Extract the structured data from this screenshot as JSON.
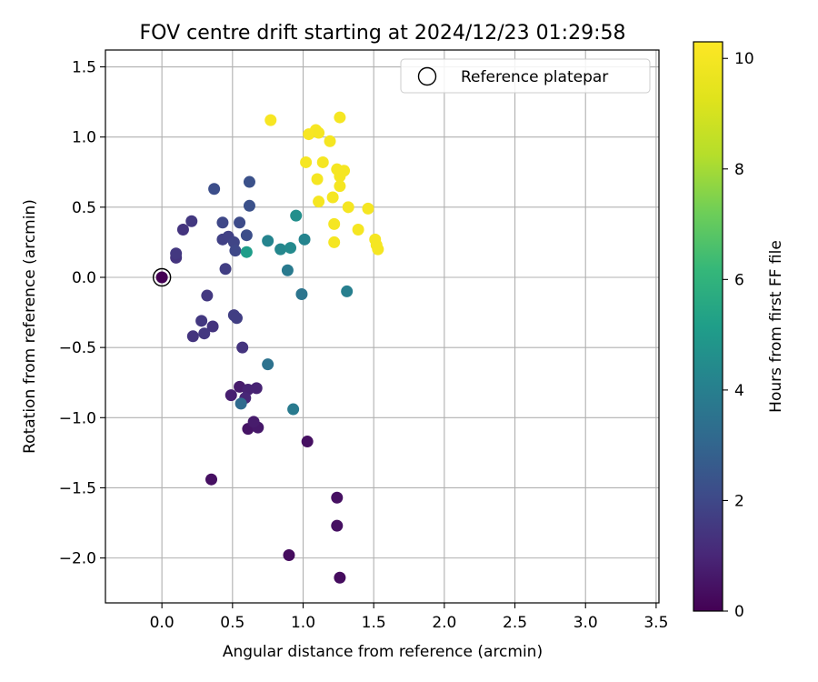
{
  "chart_data": {
    "type": "scatter",
    "title": "FOV centre drift starting at 2024/12/23 01:29:58",
    "xlabel": "Angular distance from reference (arcmin)",
    "ylabel": "Rotation from reference (arcmin)",
    "xlim": [
      -0.4,
      3.52
    ],
    "ylim": [
      -2.32,
      1.62
    ],
    "xticks": [
      0.0,
      0.5,
      1.0,
      1.5,
      2.0,
      2.5,
      3.0,
      3.5
    ],
    "yticks": [
      -2.0,
      -1.5,
      -1.0,
      -0.5,
      0.0,
      0.5,
      1.0,
      1.5
    ],
    "xtick_labels": [
      "0.0",
      "0.5",
      "1.0",
      "1.5",
      "2.0",
      "2.5",
      "3.0",
      "3.5"
    ],
    "ytick_labels": [
      "−2.0",
      "−1.5",
      "−1.0",
      "−0.5",
      "0.0",
      "0.5",
      "1.0",
      "1.5"
    ],
    "grid": true,
    "legend": {
      "position": "top-right",
      "entries": [
        "Reference platepar"
      ]
    },
    "reference_point": {
      "x": 0.0,
      "y": 0.0,
      "label": "Reference platepar"
    },
    "colorbar": {
      "label": "Hours from first FF file",
      "min": 0,
      "max": 10.3,
      "ticks": [
        0,
        2,
        4,
        6,
        8,
        10
      ],
      "tick_labels": [
        "0",
        "2",
        "4",
        "6",
        "8",
        "10"
      ],
      "colormap": "viridis"
    },
    "points": [
      {
        "x": 0.0,
        "y": 0.0,
        "c": 0.0
      },
      {
        "x": 0.35,
        "y": -1.44,
        "c": 0.4
      },
      {
        "x": 0.9,
        "y": -1.98,
        "c": 0.3
      },
      {
        "x": 1.26,
        "y": -2.14,
        "c": 0.3
      },
      {
        "x": 1.24,
        "y": -1.77,
        "c": 0.4
      },
      {
        "x": 1.24,
        "y": -1.57,
        "c": 0.4
      },
      {
        "x": 1.03,
        "y": -1.17,
        "c": 0.4
      },
      {
        "x": 0.61,
        "y": -1.08,
        "c": 0.5
      },
      {
        "x": 0.68,
        "y": -1.07,
        "c": 0.6
      },
      {
        "x": 0.65,
        "y": -1.03,
        "c": 0.7
      },
      {
        "x": 0.55,
        "y": -0.78,
        "c": 0.7
      },
      {
        "x": 0.49,
        "y": -0.84,
        "c": 0.8
      },
      {
        "x": 0.61,
        "y": -0.8,
        "c": 0.9
      },
      {
        "x": 0.67,
        "y": -0.79,
        "c": 0.9
      },
      {
        "x": 0.59,
        "y": -0.86,
        "c": 1.0
      },
      {
        "x": 0.57,
        "y": -0.5,
        "c": 1.4
      },
      {
        "x": 0.36,
        "y": -0.35,
        "c": 1.4
      },
      {
        "x": 0.3,
        "y": -0.4,
        "c": 1.5
      },
      {
        "x": 0.22,
        "y": -0.42,
        "c": 1.4
      },
      {
        "x": 0.28,
        "y": -0.31,
        "c": 1.5
      },
      {
        "x": 0.32,
        "y": -0.13,
        "c": 1.5
      },
      {
        "x": 0.51,
        "y": -0.27,
        "c": 1.7
      },
      {
        "x": 0.53,
        "y": -0.29,
        "c": 1.7
      },
      {
        "x": 0.1,
        "y": 0.14,
        "c": 1.4
      },
      {
        "x": 0.1,
        "y": 0.17,
        "c": 1.5
      },
      {
        "x": 0.15,
        "y": 0.34,
        "c": 1.4
      },
      {
        "x": 0.21,
        "y": 0.4,
        "c": 1.5
      },
      {
        "x": 0.45,
        "y": 0.06,
        "c": 1.7
      },
      {
        "x": 0.43,
        "y": 0.27,
        "c": 1.8
      },
      {
        "x": 0.47,
        "y": 0.29,
        "c": 1.8
      },
      {
        "x": 0.51,
        "y": 0.25,
        "c": 1.9
      },
      {
        "x": 0.52,
        "y": 0.19,
        "c": 2.0
      },
      {
        "x": 0.43,
        "y": 0.39,
        "c": 2.0
      },
      {
        "x": 0.55,
        "y": 0.39,
        "c": 2.1
      },
      {
        "x": 0.37,
        "y": 0.63,
        "c": 2.2
      },
      {
        "x": 0.6,
        "y": 0.3,
        "c": 2.2
      },
      {
        "x": 0.62,
        "y": 0.51,
        "c": 2.3
      },
      {
        "x": 0.62,
        "y": 0.68,
        "c": 2.3
      },
      {
        "x": 0.56,
        "y": -0.9,
        "c": 3.2
      },
      {
        "x": 0.75,
        "y": -0.62,
        "c": 3.5
      },
      {
        "x": 0.93,
        "y": -0.94,
        "c": 3.8
      },
      {
        "x": 0.99,
        "y": -0.12,
        "c": 3.6
      },
      {
        "x": 1.31,
        "y": -0.1,
        "c": 4.0
      },
      {
        "x": 0.89,
        "y": 0.05,
        "c": 3.8
      },
      {
        "x": 0.75,
        "y": 0.26,
        "c": 4.2
      },
      {
        "x": 0.84,
        "y": 0.2,
        "c": 4.3
      },
      {
        "x": 0.91,
        "y": 0.21,
        "c": 4.4
      },
      {
        "x": 1.01,
        "y": 0.27,
        "c": 4.2
      },
      {
        "x": 0.95,
        "y": 0.44,
        "c": 4.6
      },
      {
        "x": 0.6,
        "y": 0.18,
        "c": 5.1
      },
      {
        "x": 0.77,
        "y": 1.12,
        "c": 10.1
      },
      {
        "x": 1.04,
        "y": 1.02,
        "c": 10.1
      },
      {
        "x": 1.09,
        "y": 1.05,
        "c": 10.1
      },
      {
        "x": 1.11,
        "y": 1.03,
        "c": 10.0
      },
      {
        "x": 1.19,
        "y": 0.97,
        "c": 10.0
      },
      {
        "x": 1.26,
        "y": 1.14,
        "c": 10.0
      },
      {
        "x": 1.02,
        "y": 0.82,
        "c": 10.0
      },
      {
        "x": 1.14,
        "y": 0.82,
        "c": 10.0
      },
      {
        "x": 1.1,
        "y": 0.7,
        "c": 10.0
      },
      {
        "x": 1.24,
        "y": 0.77,
        "c": 10.0
      },
      {
        "x": 1.26,
        "y": 0.72,
        "c": 10.0
      },
      {
        "x": 1.29,
        "y": 0.76,
        "c": 10.0
      },
      {
        "x": 1.26,
        "y": 0.65,
        "c": 10.0
      },
      {
        "x": 1.21,
        "y": 0.57,
        "c": 10.0
      },
      {
        "x": 1.11,
        "y": 0.54,
        "c": 10.0
      },
      {
        "x": 1.32,
        "y": 0.5,
        "c": 10.0
      },
      {
        "x": 1.46,
        "y": 0.49,
        "c": 10.0
      },
      {
        "x": 1.22,
        "y": 0.38,
        "c": 10.0
      },
      {
        "x": 1.39,
        "y": 0.34,
        "c": 10.0
      },
      {
        "x": 1.22,
        "y": 0.25,
        "c": 10.0
      },
      {
        "x": 1.51,
        "y": 0.27,
        "c": 10.0
      },
      {
        "x": 1.52,
        "y": 0.23,
        "c": 10.0
      },
      {
        "x": 1.53,
        "y": 0.2,
        "c": 10.0
      }
    ]
  }
}
